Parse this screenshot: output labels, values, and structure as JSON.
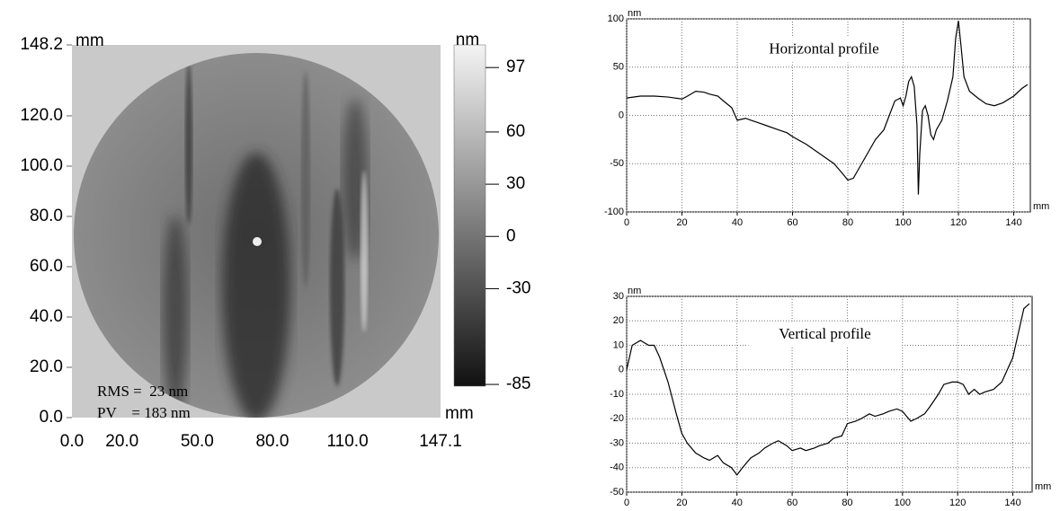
{
  "chart_data": [
    {
      "type": "surface",
      "x_label": "mm",
      "y_label": "mm",
      "xlim": [
        0,
        147.1
      ],
      "ylim": [
        0,
        148.2
      ],
      "xticks": [
        {
          "value": 0,
          "label": "0.0"
        },
        {
          "value": 20,
          "label": "20.0"
        },
        {
          "value": 50,
          "label": "50.0"
        },
        {
          "value": 80,
          "label": "80.0"
        },
        {
          "value": 110,
          "label": "110.0"
        },
        147.1
      ],
      "yticks": [
        {
          "value": 0,
          "label": "0.0"
        },
        {
          "value": 20,
          "label": "20.0"
        },
        {
          "value": 40,
          "label": "40.0"
        },
        {
          "value": 60,
          "label": "60.0"
        },
        {
          "value": 80,
          "label": "80.0"
        },
        {
          "value": 100,
          "label": "100.0"
        },
        {
          "value": 120,
          "label": "120.0"
        },
        148.2
      ],
      "colorbar": {
        "label": "nm",
        "lim": [
          -86,
          110
        ],
        "ticks": [
          97,
          60,
          30,
          0,
          -30,
          -85
        ]
      },
      "annotations": [
        "RMS =  23 nm",
        "PV    = 183 nm"
      ]
    },
    {
      "type": "line",
      "annotation": "Horizontal profile",
      "y_label": "nm",
      "x_label": "mm",
      "color": "#000000",
      "grid": true,
      "xlim": [
        0,
        146
      ],
      "ylim": [
        -100,
        100
      ],
      "xticks": [
        0,
        20,
        40,
        60,
        80,
        100,
        120,
        140
      ],
      "yticks": [
        -100,
        -50,
        0,
        50,
        100
      ],
      "x": [
        0,
        5,
        10,
        15,
        20,
        22,
        25,
        28,
        30,
        33,
        35,
        38,
        40,
        43,
        45,
        48,
        50,
        55,
        58,
        60,
        65,
        70,
        75,
        78,
        80,
        82,
        85,
        88,
        90,
        93,
        95,
        97,
        99,
        100,
        101,
        102,
        103,
        104,
        105,
        105.5,
        106,
        107,
        108,
        109,
        110,
        111,
        112,
        114,
        116,
        118,
        119,
        120,
        121,
        122,
        124,
        127,
        130,
        133,
        136,
        140,
        143,
        145
      ],
      "values": [
        18,
        20,
        20,
        19,
        17,
        20,
        25,
        24,
        22,
        20,
        15,
        8,
        -5,
        -3,
        -5,
        -8,
        -10,
        -15,
        -18,
        -22,
        -30,
        -40,
        -50,
        -60,
        -67,
        -65,
        -50,
        -35,
        -25,
        -15,
        0,
        15,
        18,
        10,
        20,
        35,
        40,
        30,
        -10,
        -82,
        -40,
        5,
        10,
        0,
        -20,
        -25,
        -15,
        -5,
        15,
        40,
        80,
        98,
        70,
        40,
        25,
        18,
        12,
        10,
        13,
        20,
        28,
        32
      ]
    },
    {
      "type": "line",
      "annotation": "Vertical profile",
      "y_label": "nm",
      "x_label": "mm",
      "color": "#000000",
      "grid": true,
      "xlim": [
        0,
        147
      ],
      "ylim": [
        -50,
        30
      ],
      "xticks": [
        0,
        20,
        40,
        60,
        80,
        100,
        120,
        140
      ],
      "yticks": [
        -50,
        -40,
        -30,
        -20,
        -10,
        0,
        10,
        20,
        30
      ],
      "x": [
        0,
        2,
        5,
        8,
        10,
        12,
        15,
        18,
        20,
        22,
        25,
        28,
        30,
        33,
        35,
        38,
        40,
        42,
        45,
        48,
        50,
        53,
        55,
        58,
        60,
        63,
        65,
        68,
        70,
        73,
        75,
        78,
        80,
        83,
        85,
        88,
        90,
        93,
        95,
        98,
        100,
        103,
        105,
        108,
        110,
        113,
        115,
        118,
        120,
        122,
        124,
        126,
        128,
        130,
        133,
        136,
        138,
        140,
        142,
        144,
        146
      ],
      "values": [
        0,
        10,
        12,
        10,
        10,
        5,
        -5,
        -18,
        -26,
        -30,
        -34,
        -36,
        -37,
        -35,
        -38,
        -40,
        -43,
        -40,
        -36,
        -34,
        -32,
        -30,
        -29,
        -31,
        -33,
        -32,
        -33,
        -32,
        -31,
        -30,
        -28,
        -27,
        -22,
        -21,
        -20,
        -18,
        -19,
        -18,
        -17,
        -16,
        -17,
        -21,
        -20,
        -18,
        -15,
        -10,
        -6,
        -5,
        -5,
        -6,
        -10,
        -8,
        -10,
        -9,
        -8,
        -5,
        0,
        5,
        15,
        25,
        27
      ]
    }
  ]
}
